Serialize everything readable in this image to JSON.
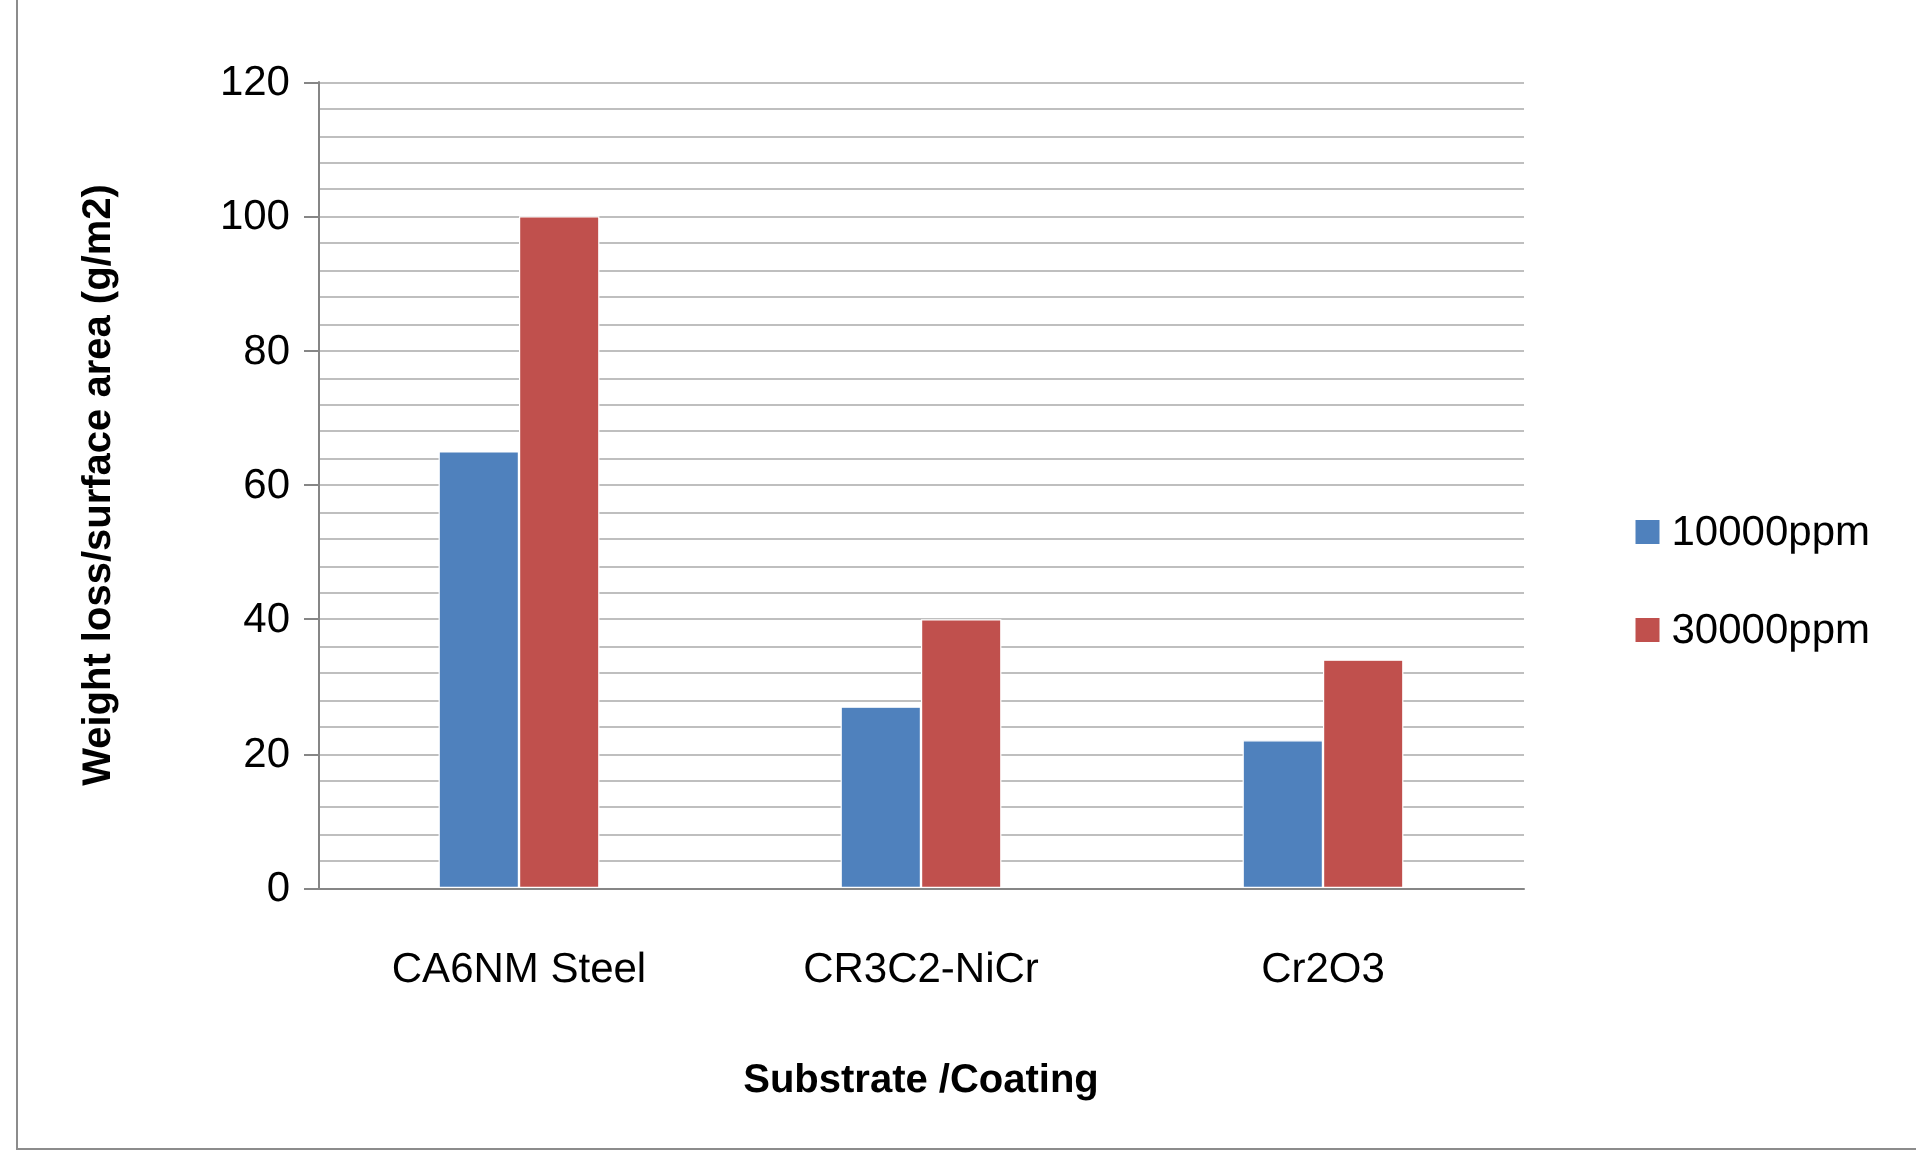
{
  "chart_data": {
    "type": "bar",
    "xlabel": "Substrate /Coating",
    "ylabel": "Weight loss/surface area (g/m2)",
    "categories": [
      "CA6NM Steel",
      "CR3C2-NiCr",
      "Cr2O3"
    ],
    "series": [
      {
        "name": "10000ppm",
        "color": "#4f81bd",
        "values": [
          65,
          27,
          22
        ]
      },
      {
        "name": "30000ppm",
        "color": "#c0504d",
        "values": [
          100,
          40,
          34
        ]
      }
    ],
    "ylim": [
      0,
      120
    ],
    "yticks": [
      0,
      {
        "value": 4,
        "label": null
      },
      {
        "value": 8,
        "label": null
      },
      {
        "value": 12,
        "label": null
      },
      {
        "value": 16,
        "label": null
      },
      20,
      {
        "value": 24,
        "label": null
      },
      {
        "value": 28,
        "label": null
      },
      {
        "value": 32,
        "label": null
      },
      {
        "value": 36,
        "label": null
      },
      40,
      {
        "value": 44,
        "label": null
      },
      {
        "value": 48,
        "label": null
      },
      {
        "value": 52,
        "label": null
      },
      {
        "value": 56,
        "label": null
      },
      60,
      {
        "value": 64,
        "label": null
      },
      {
        "value": 68,
        "label": null
      },
      {
        "value": 72,
        "label": null
      },
      {
        "value": 76,
        "label": null
      },
      80,
      {
        "value": 84,
        "label": null
      },
      {
        "value": 88,
        "label": null
      },
      {
        "value": 92,
        "label": null
      },
      {
        "value": 96,
        "label": null
      },
      100,
      {
        "value": 104,
        "label": null
      },
      {
        "value": 108,
        "label": null
      },
      {
        "value": 112,
        "label": null
      },
      {
        "value": 116,
        "label": null
      },
      120
    ],
    "grid": "y",
    "legend": "right"
  }
}
